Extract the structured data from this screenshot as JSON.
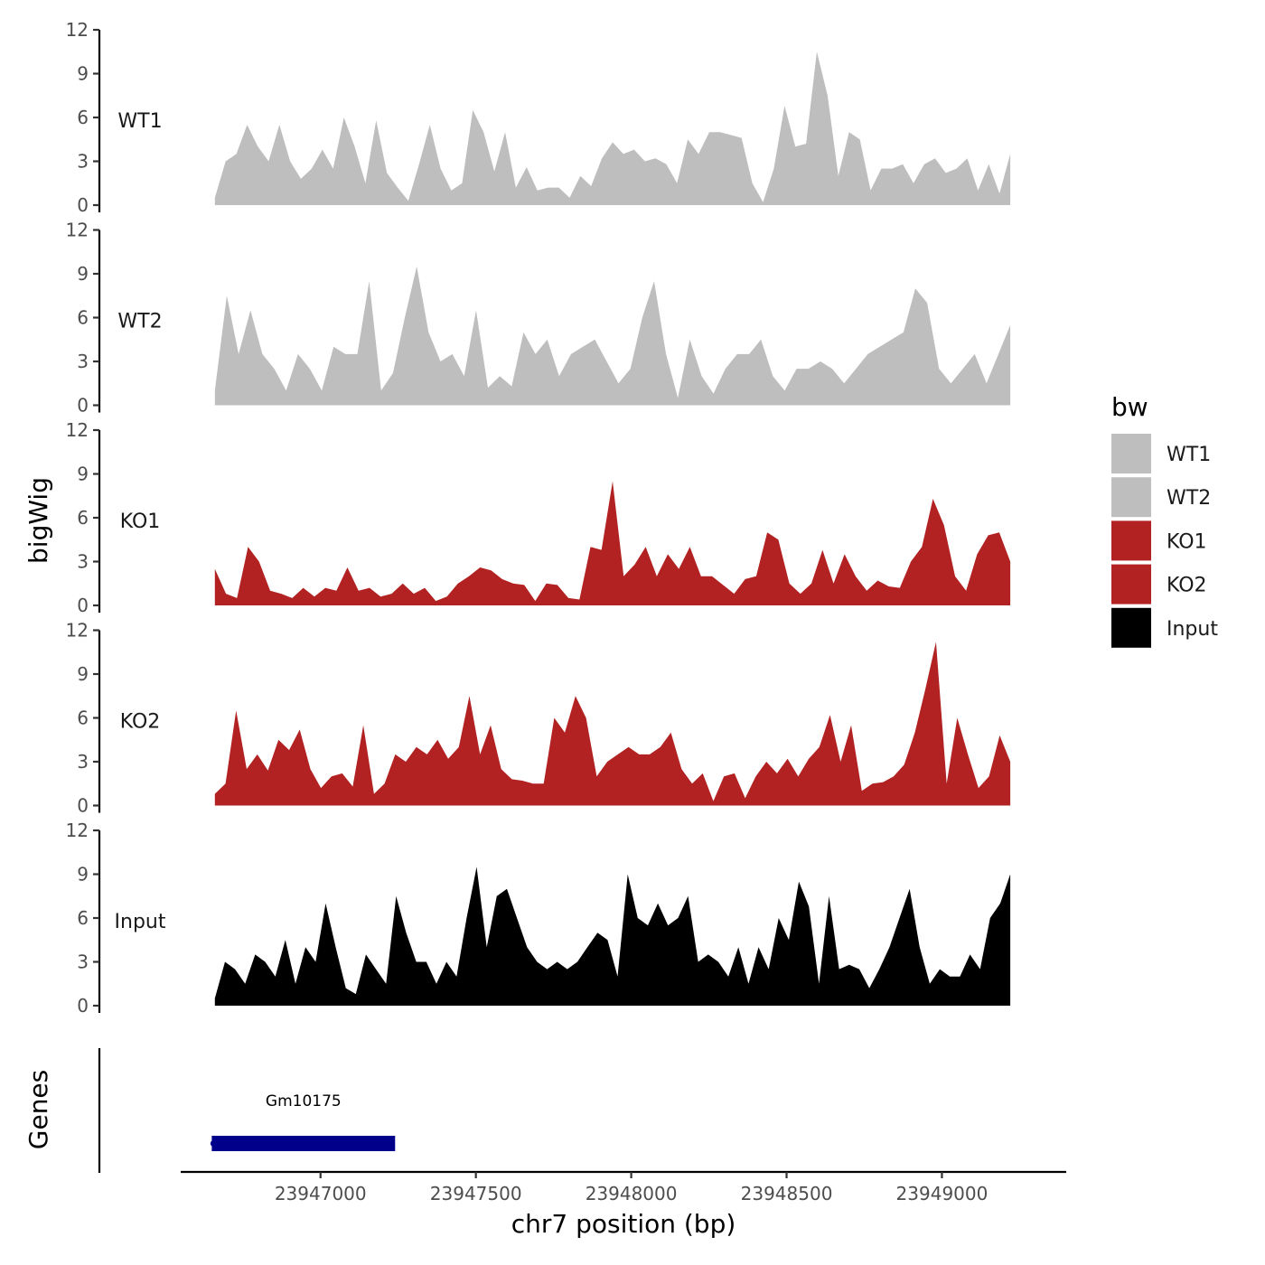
{
  "chart_data": {
    "type": "area",
    "chromosome": "chr7",
    "xlabel": "chr7 position (bp)",
    "ylabel": "bigWig",
    "xlim": [
      23946550,
      23949400
    ],
    "ylim": [
      0,
      12
    ],
    "x_ticks": [
      23947000,
      23947500,
      23948000,
      23948500,
      23949000
    ],
    "y_ticks": [
      0,
      3,
      6,
      9,
      12
    ],
    "x_range": [
      23946660,
      23949220
    ],
    "legend": {
      "title": "bw",
      "position": "right",
      "entries": [
        {
          "label": "WT1",
          "color": "#bebebe"
        },
        {
          "label": "WT2",
          "color": "#bebebe"
        },
        {
          "label": "KO1",
          "color": "#b22222"
        },
        {
          "label": "KO2",
          "color": "#b22222"
        },
        {
          "label": "Input",
          "color": "#000000"
        }
      ]
    },
    "tracks": [
      {
        "name": "WT1",
        "color": "#bebebe",
        "values": [
          0.5,
          3,
          3.5,
          5.5,
          4,
          3,
          5.5,
          3,
          1.8,
          2.5,
          3.8,
          2.5,
          6,
          4,
          1.5,
          5.8,
          2.2,
          1.2,
          0.3,
          2.8,
          5.5,
          2.5,
          1,
          1.5,
          6.5,
          5,
          2.3,
          5,
          1.2,
          2.6,
          1,
          1.2,
          1.2,
          0.5,
          2,
          1.3,
          3.2,
          4.3,
          3.5,
          3.8,
          3,
          3.2,
          2.8,
          1.5,
          4.5,
          3.5,
          5,
          5,
          4.8,
          4.6,
          1.5,
          0.2,
          2.5,
          6.8,
          4,
          4.2,
          10.5,
          7.5,
          2,
          5,
          4.5,
          1,
          2.5,
          2.5,
          2.8,
          1.5,
          2.8,
          3.2,
          2.2,
          2.5,
          3.2,
          1,
          2.8,
          0.8,
          3.5
        ]
      },
      {
        "name": "WT2",
        "color": "#bebebe",
        "values": [
          1,
          7.5,
          3.5,
          6.5,
          3.5,
          2.5,
          1,
          3.5,
          2.5,
          1,
          4,
          3.5,
          3.5,
          8.5,
          1,
          2.2,
          6,
          9.5,
          5,
          3,
          3.5,
          2,
          6.5,
          1.2,
          2,
          1.3,
          5,
          3.5,
          4.5,
          2,
          3.5,
          4,
          4.5,
          3,
          1.5,
          2.5,
          6,
          8.5,
          3.5,
          0.5,
          4.5,
          2,
          0.8,
          2.5,
          3.5,
          3.5,
          4.5,
          2,
          1,
          2.5,
          2.5,
          3,
          2.5,
          1.5,
          2.5,
          3.5,
          4,
          4.5,
          5,
          8,
          7,
          2.5,
          1.5,
          2.5,
          3.5,
          1.5,
          3.5,
          5.5
        ]
      },
      {
        "name": "KO1",
        "color": "#b22222",
        "values": [
          2.5,
          0.8,
          0.5,
          4,
          3,
          1,
          0.8,
          0.5,
          1.2,
          0.6,
          1.2,
          1,
          2.6,
          1,
          1.2,
          0.6,
          0.8,
          1.5,
          0.8,
          1.2,
          0.3,
          0.6,
          1.5,
          2,
          2.6,
          2.4,
          1.8,
          1.5,
          1.4,
          0.3,
          1.5,
          1.4,
          0.5,
          0.4,
          4,
          3.8,
          8.5,
          2,
          2.8,
          4,
          2,
          3.5,
          2.5,
          4,
          2,
          2,
          1.4,
          0.8,
          1.8,
          2,
          5,
          4.5,
          1.5,
          0.8,
          1.5,
          3.8,
          1.5,
          3.5,
          2,
          1,
          1.7,
          1.3,
          1.2,
          3,
          4,
          7.3,
          5.5,
          2,
          1,
          3.5,
          4.8,
          5,
          3
        ]
      },
      {
        "name": "KO2",
        "color": "#b22222",
        "values": [
          0.8,
          1.5,
          6.5,
          2.5,
          3.5,
          2.4,
          4.5,
          3.8,
          5.2,
          2.5,
          1.2,
          2,
          2.2,
          1.3,
          5.5,
          0.8,
          1.5,
          3.5,
          3,
          4,
          3.5,
          4.5,
          3.2,
          4,
          7.5,
          3.5,
          5.5,
          2.5,
          1.8,
          1.7,
          1.5,
          1.5,
          6,
          5,
          7.5,
          6,
          2,
          3,
          3.5,
          4,
          3.5,
          3.5,
          4,
          5,
          2.5,
          1.5,
          2.2,
          0.3,
          2,
          2.2,
          0.5,
          2,
          3,
          2.2,
          3.2,
          2,
          3.2,
          4,
          6.2,
          3,
          5.5,
          1,
          1.5,
          1.6,
          2,
          2.8,
          5,
          8,
          11.2,
          1.5,
          6,
          3.5,
          1.2,
          2,
          4.8,
          3
        ]
      },
      {
        "name": "Input",
        "color": "#000000",
        "values": [
          0.5,
          3,
          2.5,
          1.5,
          3.5,
          3,
          2,
          4.5,
          1.5,
          4,
          3,
          7,
          4,
          1.2,
          0.8,
          3.5,
          2.5,
          1.5,
          7.5,
          5,
          3,
          3,
          1.5,
          3,
          2,
          6,
          9.5,
          4,
          7.5,
          8,
          6,
          4,
          3,
          2.5,
          3,
          2.5,
          3,
          4,
          5,
          4.5,
          2,
          9,
          6,
          5.5,
          7,
          5.5,
          6,
          7.5,
          3,
          3.5,
          3,
          2,
          4,
          1.5,
          4,
          2.5,
          6,
          4.5,
          8.5,
          6.8,
          1.5,
          7.5,
          2.5,
          2.8,
          2.5,
          1.2,
          2.5,
          4,
          6,
          8,
          4,
          1.5,
          2.5,
          2,
          2,
          3.5,
          2.5,
          6,
          7,
          9
        ]
      }
    ],
    "genes": {
      "ylabel": "Genes",
      "items": [
        {
          "name": "Gm10175",
          "start": 23946650,
          "end": 23947240,
          "color": "#00008b"
        }
      ]
    }
  }
}
